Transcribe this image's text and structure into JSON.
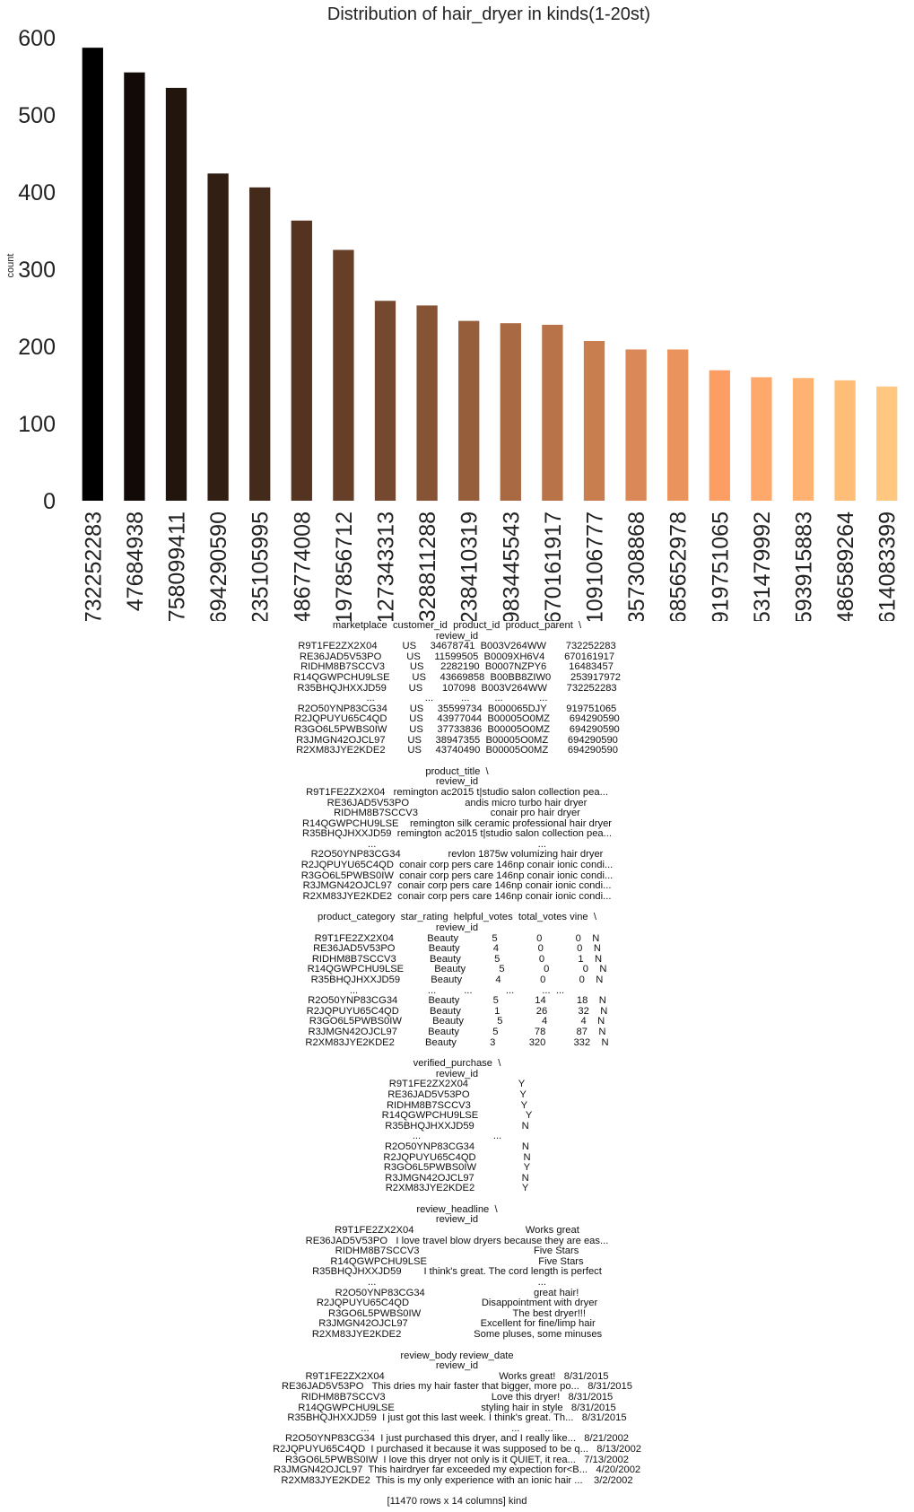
{
  "chart_data": {
    "type": "bar",
    "title": "Distribution of hair_dryer in kinds(1-20st)",
    "xlabel": "",
    "ylabel": "count",
    "ylim": [
      0,
      600
    ],
    "yticks": [
      0,
      100,
      200,
      300,
      400,
      500,
      600
    ],
    "grid": false,
    "legend": "none",
    "colormap": "copper",
    "categories": [
      "732252283",
      "47684938",
      "758099411",
      "694290590",
      "235105995",
      "486774008",
      "197856712",
      "127343313",
      "328811288",
      "238410319",
      "983445543",
      "670161917",
      "109106777",
      "357308868",
      "685652978",
      "919751065",
      "531479992",
      "593915883",
      "486589264",
      "614083399"
    ],
    "values": [
      587,
      555,
      535,
      424,
      406,
      363,
      325,
      259,
      253,
      233,
      230,
      228,
      207,
      196,
      196,
      169,
      160,
      159,
      156,
      148
    ]
  },
  "dataframe": {
    "blocks": [
      {
        "lines": [
          "marketplace  customer_id  product_id  product_parent  \\",
          "review_id",
          "R9T1FE2ZX2X04         US     34678741  B003V264WW       732252283",
          "RE36JAD5V53PO         US     11599505  B0009XH6V4       670161917",
          "RIDHM8B7SCCV3         US      2282190  B0007NZPY6        16483457",
          "R14QGWPCHU9LSE        US     43669858  B00BB8ZIW0       253917972",
          "R35BHQJHXXJD59        US       107098  B003V264WW       732252283",
          "...                  ...          ...         ...             ...",
          "R2O50YNP83CG34        US     35599734  B000065DJY       919751065",
          "R2JQPUYU65C4QD        US     43977044  B00005O0MZ       694290590",
          "R3GO6L5PWBS0IW        US     37733836  B00005O0MZ       694290590",
          "R3JMGN42OJCL97        US     38947355  B00005O0MZ       694290590",
          "R2XM83JYE2KDE2        US     43740490  B00005O0MZ       694290590"
        ]
      },
      {
        "lines": [
          "product_title  \\",
          "review_id",
          "R9T1FE2ZX2X04   remington ac2015 t|studio salon collection pea...",
          "RE36JAD5V53PO                    andis micro turbo hair dryer",
          "RIDHM8B7SCCV3                          conair pro hair dryer",
          "R14QGWPCHU9LSE    remington silk ceramic professional hair dryer",
          "R35BHQJHXXJD59  remington ac2015 t|studio salon collection pea...",
          "...                                                          ...",
          "R2O50YNP83CG34                 revlon 1875w volumizing hair dryer",
          "R2JQPUYU65C4QD  conair corp pers care 146np conair ionic condi...",
          "R3GO6L5PWBS0IW  conair corp pers care 146np conair ionic condi...",
          "R3JMGN42OJCL97  conair corp pers care 146np conair ionic condi...",
          "R2XM83JYE2KDE2  conair corp pers care 146np conair ionic condi..."
        ]
      },
      {
        "lines": [
          "product_category  star_rating  helpful_votes  total_votes vine  \\",
          "review_id",
          "R9T1FE2ZX2X04            Beauty            5              0            0    N",
          "RE36JAD5V53PO            Beauty            4              0            0    N",
          "RIDHM8B7SCCV3            Beauty            5              0            1    N",
          "R14QGWPCHU9LSE           Beauty            5              0            0    N",
          "R35BHQJHXXJD59           Beauty            4              0            0    N",
          "...                         ...          ...            ...          ...  ...",
          "R2O50YNP83CG34           Beauty            5             14           18    N",
          "R2JQPUYU65C4QD           Beauty            1             26           32    N",
          "R3GO6L5PWBS0IW           Beauty            5              4            4    N",
          "R3JMGN42OJCL97           Beauty            5             78           87    N",
          "R2XM83JYE2KDE2           Beauty            3            320          332    N"
        ]
      },
      {
        "lines": [
          "verified_purchase  \\",
          "review_id",
          "R9T1FE2ZX2X04                  Y",
          "RE36JAD5V53PO                  Y",
          "RIDHM8B7SCCV3                  Y",
          "R14QGWPCHU9LSE                 Y",
          "R35BHQJHXXJD59                 N",
          "...                          ...",
          "R2O50YNP83CG34                 N",
          "R2JQPUYU65C4QD                 N",
          "R3GO6L5PWBS0IW                 Y",
          "R3JMGN42OJCL97                 N",
          "R2XM83JYE2KDE2                 Y"
        ]
      },
      {
        "lines": [
          "review_headline  \\",
          "review_id",
          "R9T1FE2ZX2X04                                        Works great",
          "RE36JAD5V53PO   I love travel blow dryers because they are eas...",
          "RIDHM8B7SCCV3                                         Five Stars",
          "R14QGWPCHU9LSE                                        Five Stars",
          "R35BHQJHXXJD59        I think's great. The cord length is perfect",
          "...                                                          ...",
          "R2O50YNP83CG34                                       great hair!",
          "R2JQPUYU65C4QD                          Disappointment with dryer",
          "R3GO6L5PWBS0IW                                 The best dryer!!!",
          "R3JMGN42OJCL97                          Excellent for fine/limp hair",
          "R2XM83JYE2KDE2                          Some pluses, some minuses"
        ]
      },
      {
        "lines": [
          "review_body review_date",
          "review_id",
          "R9T1FE2ZX2X04                                         Works great!   8/31/2015",
          "RE36JAD5V53PO   This dries my hair faster that bigger, more po...   8/31/2015",
          "RIDHM8B7SCCV3                                      Love this dryer!   8/31/2015",
          "R14QGWPCHU9LSE                               styling hair in style   8/31/2015",
          "R35BHQJHXXJD59  I just got this last week. I think's great. Th...   8/31/2015",
          "...                                                   ...         ...",
          "R2O50YNP83CG34  I just purchased this dryer, and I really like...   8/21/2002",
          "R2JQPUYU65C4QD  I purchased it because it was supposed to be q...   8/13/2002",
          "R3GO6L5PWBS0IW  I love this dryer not only is it QUIET, it rea...   7/13/2002",
          "R3JMGN42OJCL97  This hairdryer far exceeded my expection for<B...   4/20/2002",
          "R2XM83JYE2KDE2  This is my only experience with an ionic hair ...    3/2/2002"
        ]
      }
    ],
    "footer": "[11470 rows x 14 columns] kind"
  }
}
